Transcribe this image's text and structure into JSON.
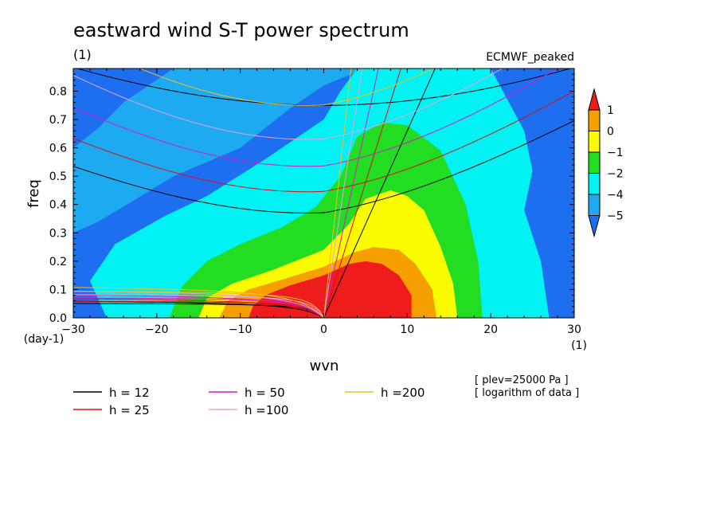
{
  "chart_data": {
    "type": "heatmap",
    "title": "eastward wind S-T power spectrum",
    "title_units": "(1)",
    "subtitle_right": "ECMWF_peaked",
    "xlabel": "wvn",
    "ylabel": "freq",
    "x_units": "(1)",
    "y_units": "(day-1)",
    "xlim": [
      -30,
      30
    ],
    "ylim": [
      0,
      0.88
    ],
    "xticks": [
      -30,
      -20,
      -10,
      0,
      10,
      20,
      30
    ],
    "xtick_labels": [
      "-30",
      "-20",
      "-10",
      "0",
      "10",
      "20",
      "30"
    ],
    "yticks": [
      0.0,
      0.1,
      0.2,
      0.3,
      0.4,
      0.5,
      0.6,
      0.7,
      0.8
    ],
    "ytick_labels": [
      "0.0",
      "0.1",
      "0.2",
      "0.3",
      "0.4",
      "0.5",
      "0.6",
      "0.7",
      "0.8"
    ],
    "colorbar": {
      "levels": [
        -5,
        -4,
        -2,
        -1,
        0,
        1
      ],
      "labels": [
        "1",
        "0",
        "-1",
        "-2",
        "-4",
        "-5"
      ],
      "bands": [
        {
          "range": "> 1",
          "color": "#ee1c1c"
        },
        {
          "range": "0 to 1",
          "color": "#f5a000"
        },
        {
          "range": "-1 to 0",
          "color": "#fafa00"
        },
        {
          "range": "-2 to -1",
          "color": "#22dd22"
        },
        {
          "range": "-4 to -2",
          "color": "#00f2f2"
        },
        {
          "range": "-5 to -4",
          "color": "#1eaaf0"
        },
        {
          "range": "< -5",
          "color": "#1e6ef0"
        }
      ]
    },
    "field": {
      "peak_wvn": 0,
      "peak_freq": 0.0,
      "contours": [
        {
          "level": 1,
          "color": "#ee1c1c",
          "points": [
            [
              -9,
              0
            ],
            [
              -8.5,
              0.04
            ],
            [
              -7,
              0.08
            ],
            [
              -4,
              0.115
            ],
            [
              0,
              0.15
            ],
            [
              3,
              0.19
            ],
            [
              5,
              0.2
            ],
            [
              7,
              0.19
            ],
            [
              9,
              0.15
            ],
            [
              10.5,
              0.08
            ],
            [
              10.5,
              0
            ]
          ]
        },
        {
          "level": 0,
          "color": "#f5a000",
          "points": [
            [
              -12.5,
              0
            ],
            [
              -11.5,
              0.06
            ],
            [
              -9,
              0.1
            ],
            [
              -5,
              0.135
            ],
            [
              0,
              0.18
            ],
            [
              3.5,
              0.23
            ],
            [
              6,
              0.25
            ],
            [
              9,
              0.24
            ],
            [
              11,
              0.19
            ],
            [
              13,
              0.1
            ],
            [
              13.5,
              0
            ]
          ]
        },
        {
          "level": -1,
          "color": "#fafa00",
          "points": [
            [
              -15,
              0
            ],
            [
              -14,
              0.07
            ],
            [
              -11,
              0.12
            ],
            [
              -6,
              0.17
            ],
            [
              0,
              0.24
            ],
            [
              3,
              0.33
            ],
            [
              5,
              0.42
            ],
            [
              8,
              0.45
            ],
            [
              10,
              0.43
            ],
            [
              12,
              0.38
            ],
            [
              14,
              0.25
            ],
            [
              15.5,
              0.12
            ],
            [
              16,
              0
            ]
          ]
        },
        {
          "level": -2,
          "color": "#22dd22",
          "points": [
            [
              -18.5,
              0
            ],
            [
              -17,
              0.11
            ],
            [
              -14,
              0.2
            ],
            [
              -10,
              0.26
            ],
            [
              -5,
              0.32
            ],
            [
              -1,
              0.39
            ],
            [
              2,
              0.5
            ],
            [
              4,
              0.64
            ],
            [
              7,
              0.69
            ],
            [
              10,
              0.68
            ],
            [
              14,
              0.59
            ],
            [
              17,
              0.4
            ],
            [
              18.5,
              0.2
            ],
            [
              19,
              0
            ]
          ]
        },
        {
          "level": -4,
          "color": "#00f2f2",
          "points": [
            [
              -26,
              0
            ],
            [
              -28,
              0.13
            ],
            [
              -25,
              0.26
            ],
            [
              -19,
              0.36
            ],
            [
              -14,
              0.43
            ],
            [
              -7,
              0.56
            ],
            [
              0,
              0.7
            ],
            [
              2,
              0.8
            ],
            [
              4,
              0.88
            ],
            [
              20,
              0.88
            ],
            [
              24,
              0.66
            ],
            [
              25,
              0.52
            ],
            [
              24,
              0.38
            ],
            [
              26,
              0.2
            ],
            [
              27,
              0
            ]
          ]
        },
        {
          "level": -5,
          "color": "#1eaaf0",
          "points": [
            [
              -30,
              0.6
            ],
            [
              -27,
              0.67
            ],
            [
              -24,
              0.76
            ],
            [
              -20,
              0.84
            ],
            [
              -18,
              0.88
            ],
            [
              5,
              0.88
            ],
            [
              0,
              0.82
            ],
            [
              -4,
              0.74
            ],
            [
              -10,
              0.6
            ],
            [
              -18,
              0.5
            ],
            [
              -23,
              0.41
            ],
            [
              -27,
              0.34
            ],
            [
              -30,
              0.3
            ]
          ]
        }
      ]
    },
    "series": [
      {
        "name": "h = 12",
        "color": "#000000",
        "kelvin_speed": 10.8,
        "erw_sat_freq": 0.065,
        "mrg_f0": 0.37,
        "ig_f0": 0.75,
        "ig_slope": 0.012
      },
      {
        "name": "h = 25",
        "color": "#d81010",
        "kelvin_speed": 15.6,
        "erw_sat_freq": 0.075,
        "mrg_f0": 0.445,
        "ig_f0": 0.91,
        "ig_slope": 0.014
      },
      {
        "name": "h = 50",
        "color": "#d818c8",
        "kelvin_speed": 22.0,
        "erw_sat_freq": 0.09,
        "mrg_f0": 0.535,
        "ig_f0": 1.1,
        "ig_slope": 0.016
      },
      {
        "name": "h =100",
        "color": "#e8a0e0",
        "kelvin_speed": 31.2,
        "erw_sat_freq": 0.105,
        "mrg_f0": 0.63,
        "ig_f0": 1.3,
        "ig_slope": 0.018
      },
      {
        "name": "h =200",
        "color": "#f0c020",
        "kelvin_speed": 44.0,
        "erw_sat_freq": 0.12,
        "mrg_f0": 0.75,
        "ig_f0": 1.55,
        "ig_slope": 0.02
      }
    ],
    "annotations": [
      "[ plev=25000 Pa ]",
      "[ logarithm of data ]"
    ]
  }
}
